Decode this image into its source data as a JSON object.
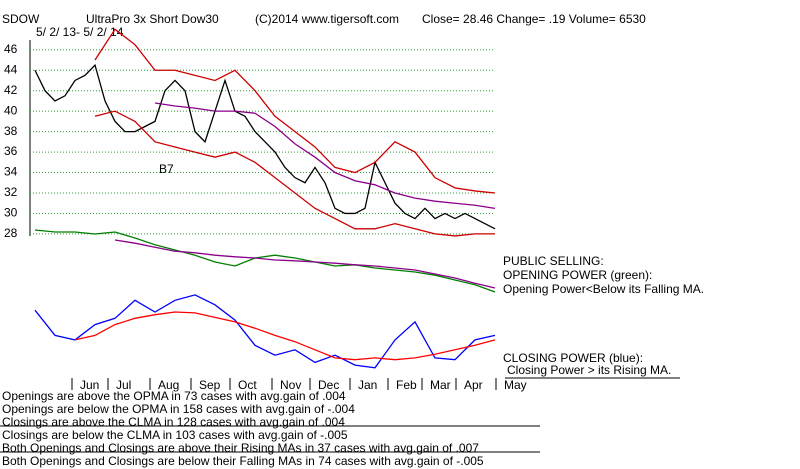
{
  "header": {
    "symbol": "SDOW",
    "name": "UltraPro 3x Short Dow30",
    "copyright": "(C)2014 www.tigersoft.com",
    "quote": "Close=  28.46  Change= .19 Volume= 6530",
    "range": "5/ 2/ 13- 5/ 2/ 14"
  },
  "chart_data": [
    {
      "type": "line",
      "annotations": [
        "B7"
      ],
      "xlim": [
        0,
        48
      ],
      "ylim": [
        27.6,
        49.4
      ],
      "yticks": [
        28,
        30,
        32,
        34,
        36,
        38,
        40,
        42,
        44,
        46
      ],
      "grid": true,
      "grid_color": "#2e9a2e",
      "xticks": [
        {
          "value": 3.7,
          "label": "Jun"
        },
        {
          "value": 7.3,
          "label": "Jul"
        },
        {
          "value": 11.5,
          "label": "Aug"
        },
        {
          "value": 15.6,
          "label": "Sep"
        },
        {
          "value": 19.5,
          "label": "Oct"
        },
        {
          "value": 23.7,
          "label": "Nov"
        },
        {
          "value": 27.5,
          "label": "Dec"
        },
        {
          "value": 31.5,
          "label": "Jan"
        },
        {
          "value": 35.3,
          "label": "Feb"
        },
        {
          "value": 38.7,
          "label": "Mar"
        },
        {
          "value": 42.1,
          "label": "Apr"
        },
        {
          "value": 46.1,
          "label": "May"
        }
      ],
      "series": [
        {
          "color": "#000000",
          "values": [
            44,
            42,
            41,
            41.5,
            43,
            43.5,
            44.5,
            41,
            39,
            38,
            38,
            38.5,
            39,
            42,
            43,
            42,
            38,
            37,
            40,
            43,
            40,
            39.5,
            38,
            37,
            36,
            34.5,
            33.5,
            33,
            34.5,
            33,
            30.5,
            30,
            30,
            30.5,
            35,
            33,
            31,
            30,
            29.5,
            30.5,
            29.5,
            30,
            29.5,
            30,
            29.5,
            29,
            28.5
          ]
        },
        {
          "color": "#cc0000",
          "x": [
            6,
            8,
            10,
            12,
            14,
            16,
            18,
            20,
            22,
            24,
            26,
            28,
            30,
            32,
            34,
            36,
            38,
            40,
            42,
            44,
            46
          ],
          "values": [
            45,
            48,
            46.5,
            44,
            44,
            43.5,
            43,
            44,
            42,
            39.5,
            38,
            36.5,
            34.5,
            34,
            35,
            37,
            36,
            33.5,
            32.5,
            32.2,
            32
          ]
        },
        {
          "color": "#cc0000",
          "x": [
            6,
            8,
            10,
            12,
            14,
            16,
            18,
            20,
            22,
            24,
            26,
            28,
            30,
            32,
            34,
            36,
            38,
            40,
            42,
            44,
            46
          ],
          "values": [
            39.5,
            40,
            39,
            37,
            36.5,
            36,
            35.5,
            36,
            35,
            33.5,
            32,
            30.5,
            29.5,
            28.5,
            28.5,
            29,
            28.5,
            28,
            27.8,
            28,
            28
          ]
        },
        {
          "color": "#8b008b",
          "x": [
            12,
            14,
            16,
            18,
            20,
            22,
            24,
            26,
            28,
            30,
            32,
            34,
            36,
            38,
            40,
            42,
            44,
            46
          ],
          "values": [
            40.8,
            40.5,
            40.3,
            40,
            40,
            39.8,
            38.5,
            36.8,
            35.5,
            34,
            33.2,
            32.8,
            32,
            31.5,
            31.2,
            31,
            30.8,
            30.5
          ]
        }
      ]
    },
    {
      "type": "line",
      "title": "PUBLIC SELLING:",
      "subtitle": "OPENING POWER (green):",
      "annotations": [
        "Opening Power<Below its Falling MA."
      ],
      "xlim": [
        0,
        48
      ],
      "ylim": [
        0,
        100
      ],
      "series": [
        {
          "color": "#008000",
          "x": [
            0,
            2,
            4,
            6,
            8,
            10,
            12,
            14,
            16,
            18,
            20,
            22,
            24,
            26,
            28,
            30,
            32,
            34,
            36,
            38,
            40,
            42,
            44,
            46
          ],
          "values": [
            87.5,
            85,
            85,
            82.5,
            85,
            77.5,
            69,
            62.5,
            56,
            47.5,
            42.5,
            52.5,
            56,
            52.5,
            47.5,
            42.5,
            44,
            40,
            37.5,
            35,
            31,
            25,
            19,
            10
          ]
        },
        {
          "color": "#8b008b",
          "x": [
            8,
            10,
            12,
            14,
            16,
            18,
            20,
            22,
            24,
            26,
            28,
            30,
            32,
            34,
            36,
            38,
            40,
            42,
            44,
            46
          ],
          "values": [
            75,
            71,
            66,
            61,
            59,
            56,
            54,
            52.5,
            50,
            49,
            47.5,
            46,
            44,
            42.5,
            40,
            37.5,
            32.5,
            27.5,
            21,
            15
          ]
        }
      ]
    },
    {
      "type": "line",
      "title": "CLOSING POWER (blue):",
      "annotations": [
        "Closing Power > its Rising MA."
      ],
      "xlim": [
        0,
        48
      ],
      "ylim": [
        0,
        100
      ],
      "series": [
        {
          "color": "#0000ff",
          "x": [
            0,
            2,
            4,
            6,
            8,
            10,
            12,
            14,
            16,
            18,
            20,
            22,
            24,
            26,
            28,
            30,
            32,
            34,
            36,
            38,
            40,
            42,
            44,
            46
          ],
          "values": [
            72,
            44,
            39,
            56,
            63,
            83,
            70,
            83,
            89,
            78,
            61,
            33,
            22,
            28,
            14,
            22,
            11,
            8,
            39,
            59,
            19,
            17,
            39,
            44
          ]
        },
        {
          "color": "#ff0000",
          "x": [
            4,
            6,
            8,
            10,
            12,
            14,
            16,
            18,
            20,
            22,
            24,
            26,
            28,
            30,
            32,
            34,
            36,
            38,
            40,
            42,
            44,
            46
          ],
          "values": [
            39,
            44,
            56,
            63,
            67,
            70,
            69,
            64,
            59,
            52,
            44,
            37,
            28,
            19,
            17,
            19,
            17,
            19,
            23,
            28,
            33,
            39
          ]
        }
      ]
    }
  ],
  "stats": [
    "Openings are above the OPMA in  73 cases with avg.gain of  .004",
    "Openings are below the OPMA in  158 cases with avg.gain of -.004",
    "Closings are above the CLMA in  128 cases with avg.gain of  .004",
    "Closings are below the CLMA in  103 cases with avg.gain of -.005",
    "Both Openings and Closings are above their Rising MAs in  37 cases with avg.gain of  .007",
    "Both Openings and Closings are below their Falling MAs in  74 cases with avg.gain of -.005"
  ]
}
